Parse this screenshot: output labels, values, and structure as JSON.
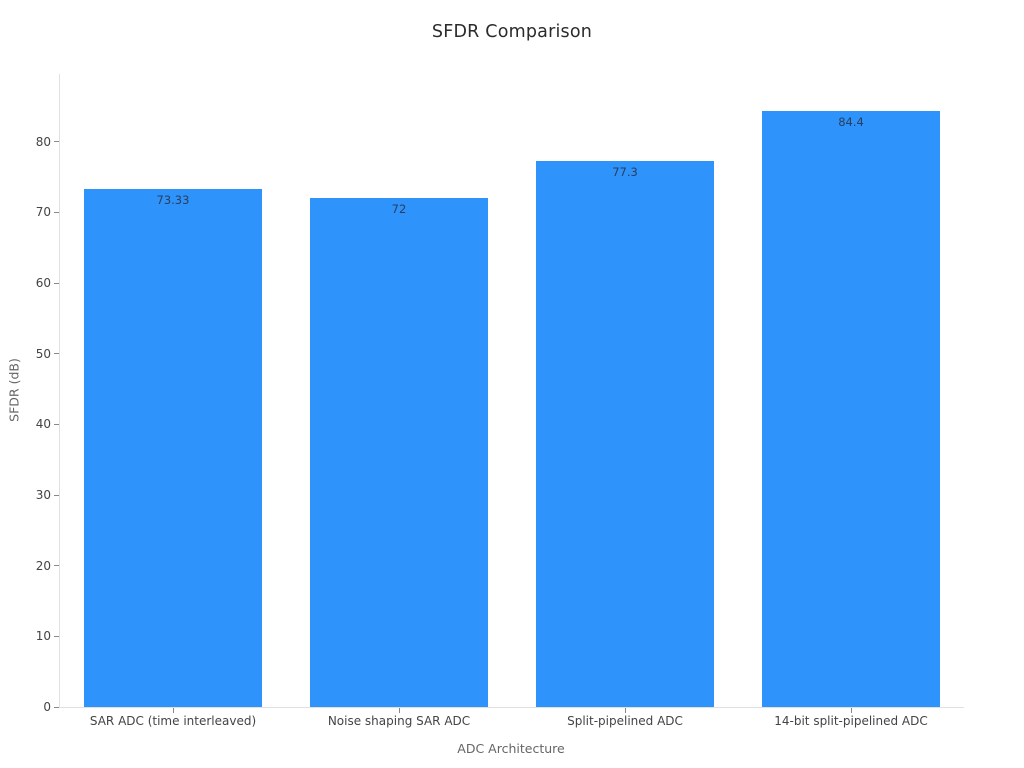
{
  "chart_data": {
    "type": "bar",
    "title": "SFDR Comparison",
    "xlabel": "ADC Architecture",
    "ylabel": "SFDR (dB)",
    "categories": [
      "SAR ADC (time interleaved)",
      "Noise shaping SAR ADC",
      "Split-pipelined ADC",
      "14-bit split-pipelined ADC"
    ],
    "values": [
      73.33,
      72,
      77.3,
      84.4
    ],
    "value_labels": [
      "73.33",
      "72",
      "77.3",
      "84.4"
    ],
    "ylim": [
      0,
      89.6
    ],
    "yticks": [
      0,
      10,
      20,
      30,
      40,
      50,
      60,
      70,
      80
    ],
    "grid": false,
    "legend": false,
    "bar_width_frac": 0.792,
    "colors": {
      "bar": "#2E93FA",
      "title": "#2b2b2b",
      "tick_label": "#444444",
      "axis_title": "#666666",
      "axis_line": "#e0e0e0",
      "tick_mark": "#888888",
      "value_label": "#2a3f5f",
      "background": "#ffffff"
    }
  }
}
